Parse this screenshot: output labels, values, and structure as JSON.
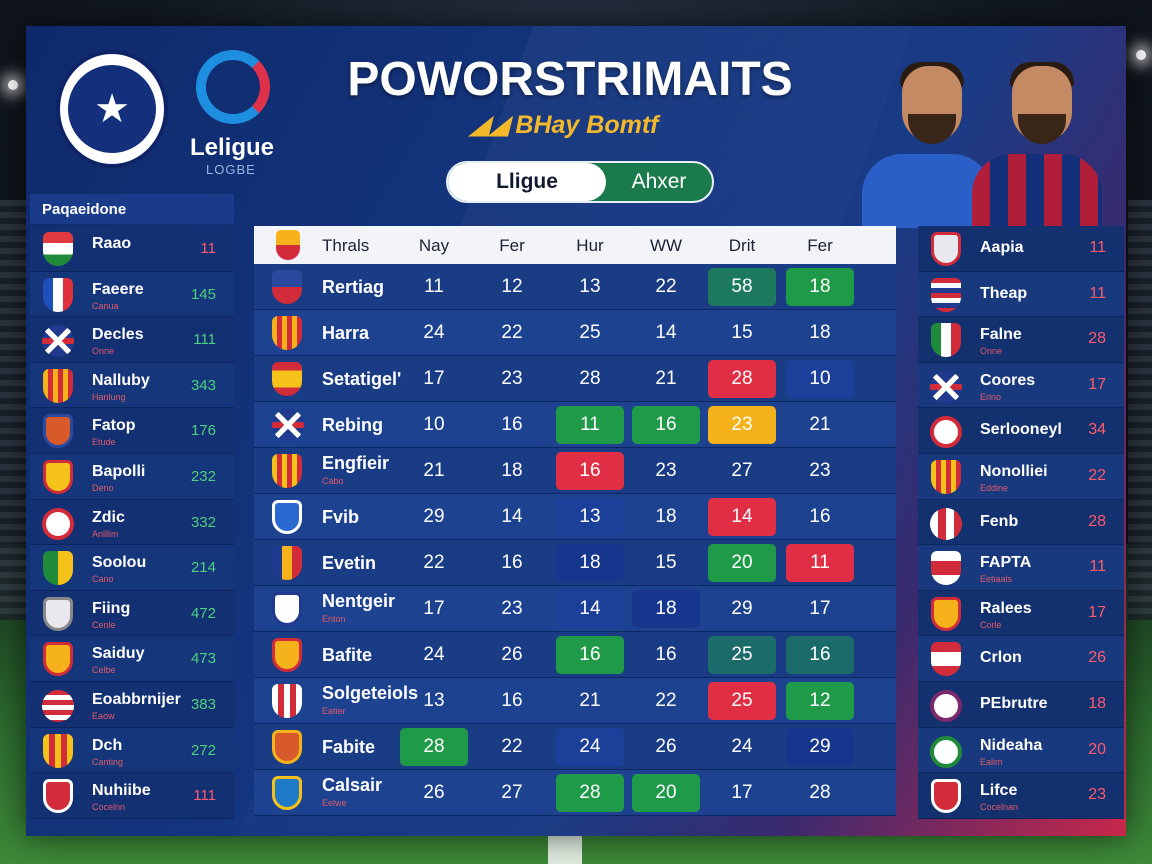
{
  "header": {
    "title": "POWORSTRIMAITS",
    "subtitle": "BHay Bomtf",
    "league_name": "Leligue",
    "league_sub": "LOGBE"
  },
  "toggle": {
    "active": "Lligue",
    "inactive": "Ahxer"
  },
  "left_panel": {
    "heading": "Paqaeidone",
    "rows": [
      {
        "name": "Raao",
        "sub": "",
        "value": "11",
        "value_color": "red"
      },
      {
        "name": "Faeere",
        "sub": "Canua",
        "value": "145",
        "value_color": "green"
      },
      {
        "name": "Decles",
        "sub": "Onne",
        "value": "111",
        "value_color": "green"
      },
      {
        "name": "Nalluby",
        "sub": "Hanlung",
        "value": "343",
        "value_color": "green"
      },
      {
        "name": "Fatop",
        "sub": "Etude",
        "value": "176",
        "value_color": "green"
      },
      {
        "name": "Bapolli",
        "sub": "Deno",
        "value": "232",
        "value_color": "green"
      },
      {
        "name": "Zdic",
        "sub": "Anlllim",
        "value": "332",
        "value_color": "green"
      },
      {
        "name": "Soolou",
        "sub": "Cano",
        "value": "214",
        "value_color": "green"
      },
      {
        "name": "Fiing",
        "sub": "Cenle",
        "value": "472",
        "value_color": "green"
      },
      {
        "name": "Saiduy",
        "sub": "Celbe",
        "value": "473",
        "value_color": "green"
      },
      {
        "name": "Eoabbrnijer",
        "sub": "Eaow",
        "value": "383",
        "value_color": "green"
      },
      {
        "name": "Dch",
        "sub": "Canting",
        "value": "272",
        "value_color": "green"
      },
      {
        "name": "Nuhiibe",
        "sub": "Cocelnn",
        "value": "111",
        "value_color": "red"
      }
    ]
  },
  "table": {
    "headers": [
      "Thrals",
      "Nay",
      "Fer",
      "Hur",
      "WW",
      "Drit",
      "Fer"
    ],
    "rows": [
      {
        "name": "Rertiag",
        "sub": "",
        "vals": [
          "11",
          "12",
          "13",
          "22",
          "58",
          "18"
        ]
      },
      {
        "name": "Harra",
        "sub": "",
        "vals": [
          "24",
          "22",
          "25",
          "14",
          "15",
          "18"
        ]
      },
      {
        "name": "Setatigel'",
        "sub": "",
        "vals": [
          "17",
          "23",
          "28",
          "21",
          "28",
          "10"
        ]
      },
      {
        "name": "Rebing",
        "sub": "",
        "vals": [
          "10",
          "16",
          "11",
          "16",
          "23",
          "21"
        ]
      },
      {
        "name": "Engfieir",
        "sub": "Cabo",
        "vals": [
          "21",
          "18",
          "16",
          "23",
          "27",
          "23"
        ]
      },
      {
        "name": "Fvib",
        "sub": "",
        "vals": [
          "29",
          "14",
          "13",
          "18",
          "14",
          "16"
        ]
      },
      {
        "name": "Evetin",
        "sub": "",
        "vals": [
          "22",
          "16",
          "18",
          "15",
          "20",
          "11"
        ]
      },
      {
        "name": "Nentgeir",
        "sub": "Enton",
        "vals": [
          "17",
          "23",
          "14",
          "18",
          "29",
          "17"
        ]
      },
      {
        "name": "Bafite",
        "sub": "",
        "vals": [
          "24",
          "26",
          "16",
          "16",
          "25",
          "16"
        ]
      },
      {
        "name": "Solgeteiols",
        "sub": "Eatier",
        "vals": [
          "13",
          "16",
          "21",
          "22",
          "25",
          "12"
        ]
      },
      {
        "name": "Fabite",
        "sub": "",
        "vals": [
          "28",
          "22",
          "24",
          "26",
          "24",
          "29"
        ]
      },
      {
        "name": "Calsair",
        "sub": "Eelwe",
        "vals": [
          "26",
          "27",
          "28",
          "20",
          "17",
          "28"
        ]
      }
    ]
  },
  "right_panel": {
    "rows": [
      {
        "name": "Aapia",
        "sub": "",
        "value": "11"
      },
      {
        "name": "Theap",
        "sub": "",
        "value": "11"
      },
      {
        "name": "Falne",
        "sub": "Onne",
        "value": "28"
      },
      {
        "name": "Coores",
        "sub": "Erino",
        "value": "17"
      },
      {
        "name": "Serlooneyl",
        "sub": "",
        "value": "34"
      },
      {
        "name": "Nonolliei",
        "sub": "Eddine",
        "value": "22"
      },
      {
        "name": "Fenb",
        "sub": "",
        "value": "28"
      },
      {
        "name": "FAPTA",
        "sub": "Eetiaals",
        "value": "11"
      },
      {
        "name": "Ralees",
        "sub": "Corle",
        "value": "17"
      },
      {
        "name": "Crlon",
        "sub": "",
        "value": "26"
      },
      {
        "name": "PEbrutre",
        "sub": "",
        "value": "18"
      },
      {
        "name": "Nideaha",
        "sub": "Ealim",
        "value": "20"
      },
      {
        "name": "Lifce",
        "sub": "Cocelnan",
        "value": "23"
      }
    ]
  },
  "colors": {
    "panel_blue": "#143680",
    "accent_red": "#c9274a",
    "green": "#1f9a48",
    "red": "#e02f45",
    "yellow": "#f5b21a",
    "title_gold": "#f4b92b"
  }
}
